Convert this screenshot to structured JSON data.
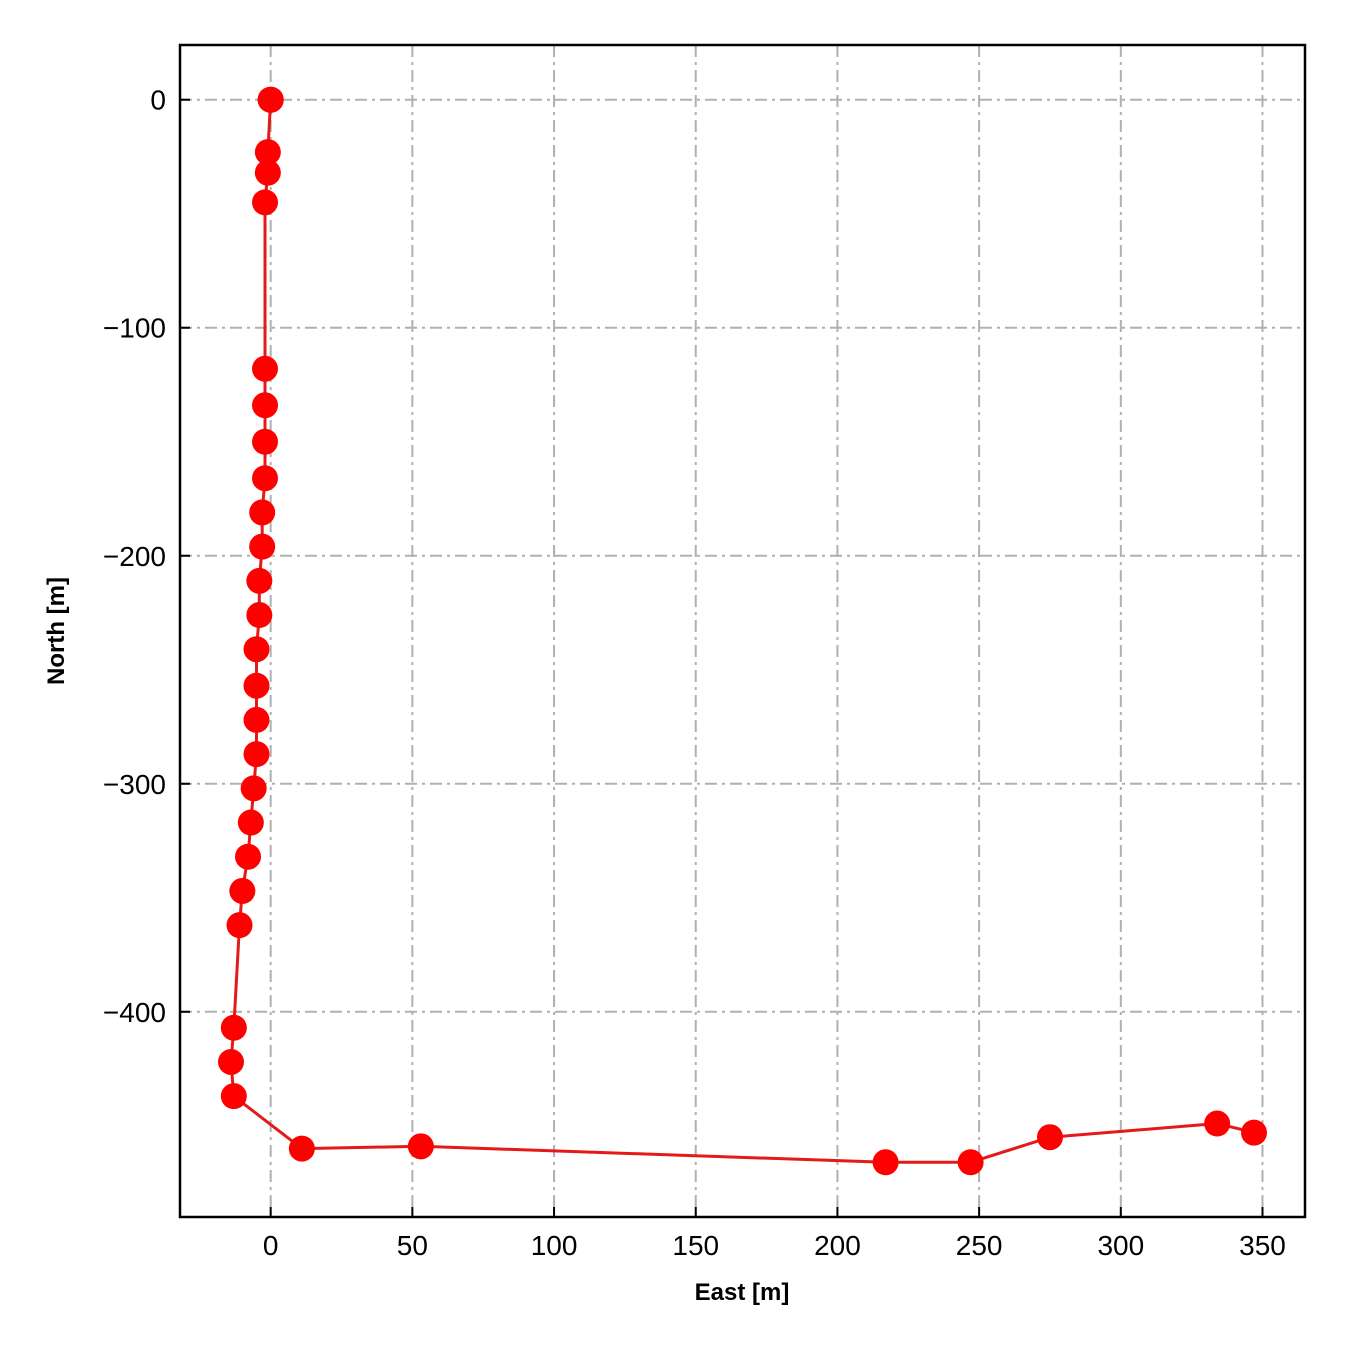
{
  "chart_data": {
    "type": "line",
    "title": "",
    "xlabel": "East [m]",
    "ylabel": "North [m]",
    "xlim": [
      -32,
      365
    ],
    "ylim": [
      -490,
      24
    ],
    "xticks": [
      0,
      50,
      100,
      150,
      200,
      250,
      300,
      350
    ],
    "yticks": [
      0,
      -100,
      -200,
      -300,
      -400
    ],
    "xtick_labels": [
      "0",
      "50",
      "100",
      "150",
      "200",
      "250",
      "300",
      "350"
    ],
    "ytick_labels": [
      "0",
      "−100",
      "−200",
      "−300",
      "−400"
    ],
    "grid": true,
    "series": [
      {
        "color": "#ff0000",
        "line_color": "#e41a1a",
        "marker": "circle",
        "x": [
          0,
          0,
          0,
          -1,
          -1,
          -2,
          -2,
          -2,
          -2,
          -2,
          -3,
          -3,
          -4,
          -4,
          -5,
          -5,
          -5,
          -5,
          -6,
          -7,
          -8,
          -10,
          -11,
          -13,
          -14,
          -13,
          11,
          53,
          217,
          247,
          275,
          334,
          347
        ],
        "y": [
          0,
          0,
          0,
          -23,
          -32,
          -45,
          -118,
          -134,
          -150,
          -166,
          -181,
          -196,
          -211,
          -226,
          -241,
          -257,
          -272,
          -287,
          -302,
          -317,
          -332,
          -347,
          -362,
          -407,
          -422,
          -437,
          -460,
          -459,
          -466,
          -466,
          -455,
          -449,
          -453
        ]
      }
    ]
  }
}
